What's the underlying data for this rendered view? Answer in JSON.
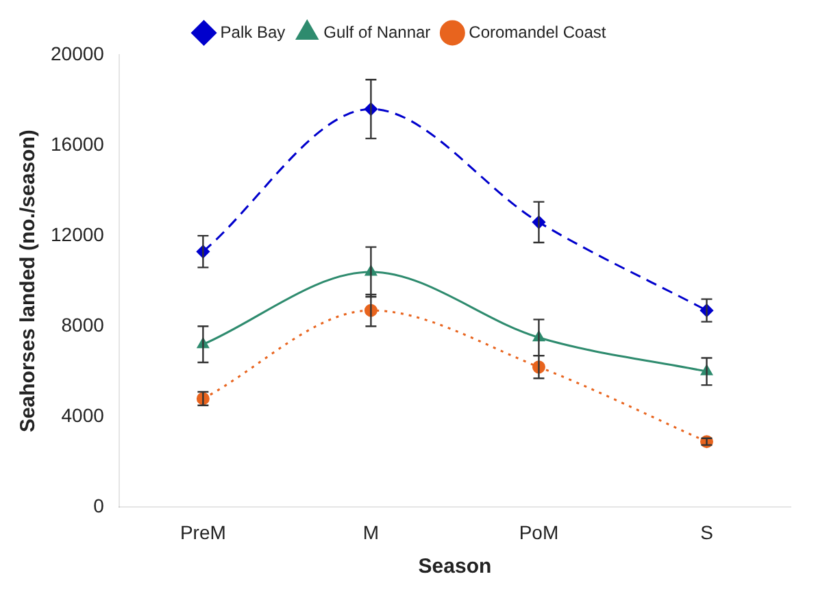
{
  "chart_data": {
    "type": "line",
    "xlabel": "Season",
    "ylabel": "Seahorses landed (no./season)",
    "categories": [
      "PreM",
      "M",
      "PoM",
      "S"
    ],
    "ylim": [
      0,
      20000
    ],
    "yticks": [
      0,
      4000,
      8000,
      12000,
      16000,
      20000
    ],
    "grid": false,
    "legend": "top",
    "series": [
      {
        "name": "Palk Bay",
        "color": "#0000cc",
        "values": [
          11300,
          17600,
          12600,
          8700
        ],
        "errors": [
          700,
          1300,
          900,
          500
        ],
        "marker": "diamond",
        "line_style": "dashed"
      },
      {
        "name": "Gulf of Nannar",
        "color": "#2e8b6e",
        "values": [
          7200,
          10400,
          7500,
          6000
        ],
        "errors": [
          800,
          1100,
          800,
          600
        ],
        "marker": "triangle",
        "line_style": "solid"
      },
      {
        "name": "Coromandel Coast",
        "color": "#e8641e",
        "values": [
          4800,
          8700,
          6200,
          2900
        ],
        "errors": [
          300,
          700,
          500,
          150
        ],
        "marker": "circle",
        "line_style": "dotted"
      }
    ]
  }
}
